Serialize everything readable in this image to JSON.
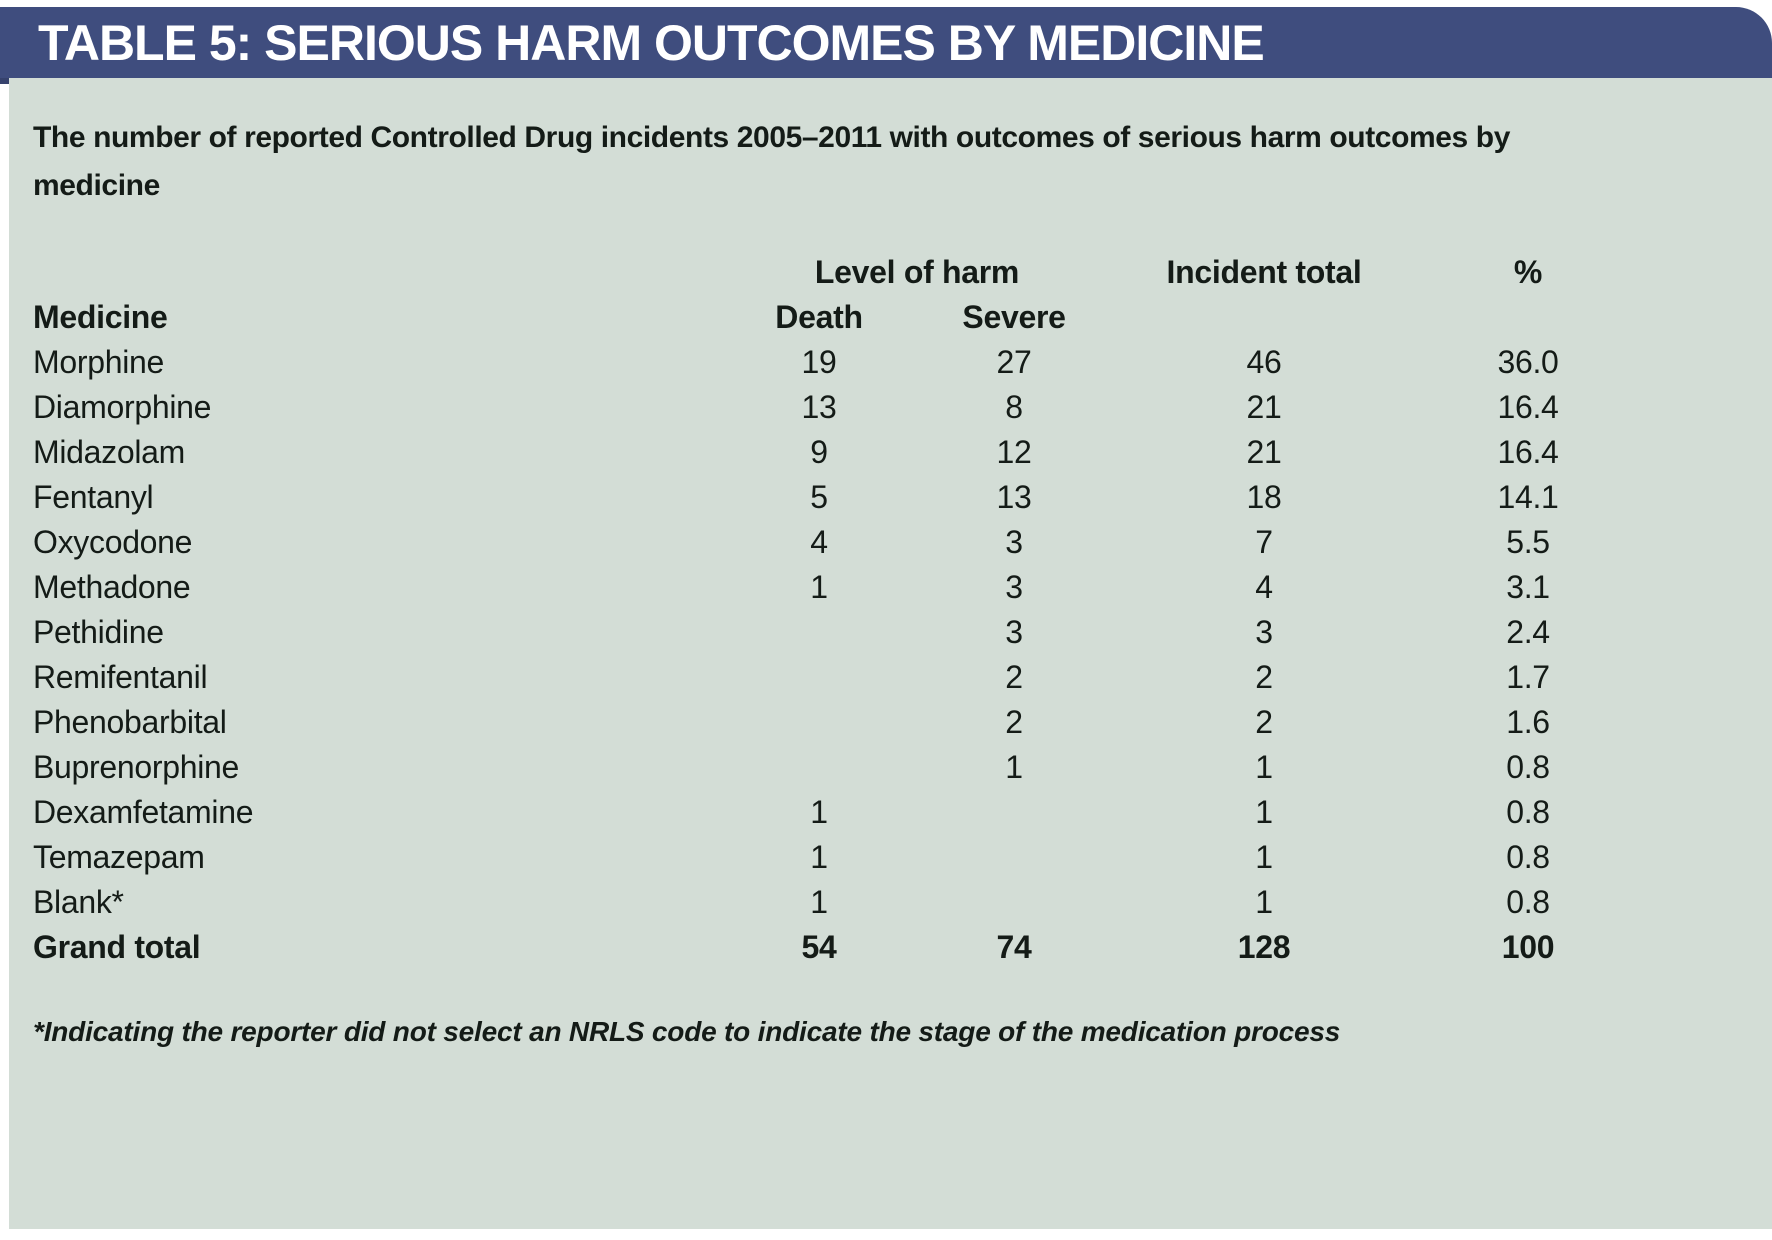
{
  "title_bar": {
    "title": "TABLE 5: SERIOUS HARM OUTCOMES BY MEDICINE"
  },
  "caption": "The number of reported Controlled Drug incidents 2005–2011 with outcomes of serious harm outcomes by medicine",
  "table": {
    "group_headers": {
      "level_of_harm": "Level of harm",
      "incident_total": "Incident total",
      "percent": "%"
    },
    "col_headers": {
      "medicine": "Medicine",
      "death": "Death",
      "severe": "Severe"
    },
    "rows": [
      {
        "medicine": "Morphine",
        "death": "19",
        "severe": "27",
        "total": "46",
        "pct": "36.0",
        "bold": false
      },
      {
        "medicine": "Diamorphine",
        "death": "13",
        "severe": "8",
        "total": "21",
        "pct": "16.4",
        "bold": false
      },
      {
        "medicine": "Midazolam",
        "death": "9",
        "severe": "12",
        "total": "21",
        "pct": "16.4",
        "bold": false
      },
      {
        "medicine": "Fentanyl",
        "death": "5",
        "severe": "13",
        "total": "18",
        "pct": "14.1",
        "bold": false
      },
      {
        "medicine": "Oxycodone",
        "death": "4",
        "severe": "3",
        "total": "7",
        "pct": "5.5",
        "bold": false
      },
      {
        "medicine": "Methadone",
        "death": "1",
        "severe": "3",
        "total": "4",
        "pct": "3.1",
        "bold": false
      },
      {
        "medicine": "Pethidine",
        "death": "",
        "severe": "3",
        "total": "3",
        "pct": "2.4",
        "bold": false
      },
      {
        "medicine": "Remifentanil",
        "death": "",
        "severe": "2",
        "total": "2",
        "pct": "1.7",
        "bold": false
      },
      {
        "medicine": "Phenobarbital",
        "death": "",
        "severe": "2",
        "total": "2",
        "pct": "1.6",
        "bold": false
      },
      {
        "medicine": "Buprenorphine",
        "death": "",
        "severe": "1",
        "total": "1",
        "pct": "0.8",
        "bold": false
      },
      {
        "medicine": "Dexamfetamine",
        "death": "1",
        "severe": "",
        "total": "1",
        "pct": "0.8",
        "bold": false
      },
      {
        "medicine": "Temazepam",
        "death": "1",
        "severe": "",
        "total": "1",
        "pct": "0.8",
        "bold": false
      },
      {
        "medicine": "Blank*",
        "death": "1",
        "severe": "",
        "total": "1",
        "pct": "0.8",
        "bold": false
      },
      {
        "medicine": "Grand total",
        "death": "54",
        "severe": "74",
        "total": "128",
        "pct": "100",
        "bold": true
      }
    ]
  },
  "footnote": "*Indicating the reporter did not select an NRLS code to indicate the stage of the medication process",
  "colors": {
    "header_bar": "#3f4d7e",
    "header_bar_notch": "#36426d",
    "panel_bg": "#d3ddd6",
    "title_text": "#ffffff",
    "body_text": "#141b17"
  }
}
